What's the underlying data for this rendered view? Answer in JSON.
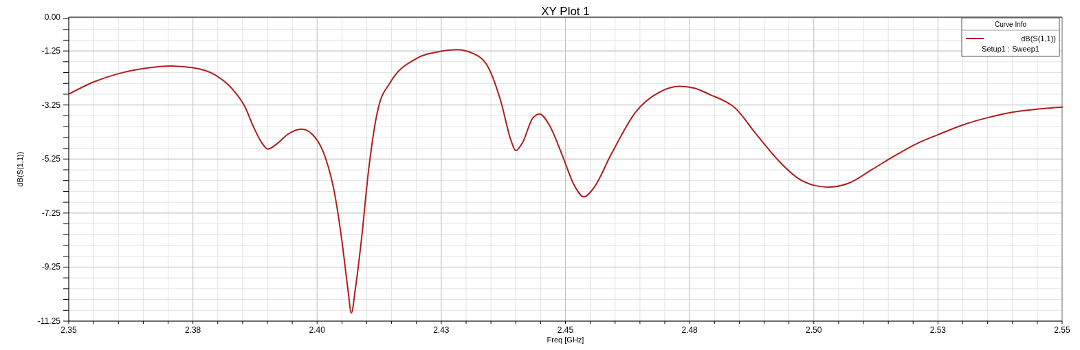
{
  "chart_data": {
    "type": "line",
    "title": "XY Plot 1",
    "xlabel": "Freq [GHz]",
    "ylabel": "dB(S(1,1))",
    "legend_title": "Curve Info",
    "legend": "top right",
    "grid": true,
    "marker": "none",
    "line_style": "solid",
    "annotations": [
      "Setup1 : Sweep1"
    ],
    "xlim": [
      2.35,
      2.55
    ],
    "xticks": [
      2.35,
      {
        "value": 2.375,
        "label": "2.38"
      },
      {
        "value": 2.4,
        "label": "2.40"
      },
      {
        "value": 2.425,
        "label": "2.43"
      },
      2.45,
      {
        "value": 2.475,
        "label": "2.48"
      },
      {
        "value": 2.5,
        "label": "2.50"
      },
      {
        "value": 2.525,
        "label": "2.53"
      },
      2.55
    ],
    "ylim": [
      -11.25,
      0
    ],
    "yticks": [
      {
        "value": 0,
        "label": "0.00"
      },
      -1.25,
      -3.25,
      -5.25,
      -7.25,
      -9.25,
      -11.25
    ],
    "series": [
      {
        "name": "dB(S(1,1))",
        "color": "#b01c1c",
        "x": [
          2.35,
          2.355,
          2.36,
          2.3648,
          2.3707,
          2.375,
          2.3795,
          2.383,
          2.3854,
          2.3873,
          2.3888,
          2.3901,
          2.3917,
          2.3942,
          2.3969,
          2.3996,
          2.4016,
          2.4035,
          2.405,
          2.4062,
          2.4069,
          2.4077,
          2.4089,
          2.4104,
          2.4123,
          2.4148,
          2.4197,
          2.425,
          2.4281,
          2.4315,
          2.4345,
          2.437,
          2.439,
          2.44,
          2.4414,
          2.4434,
          2.4448,
          2.4468,
          2.4493,
          2.4518,
          2.4537,
          2.4557,
          2.4592,
          2.4641,
          2.4691,
          2.473,
          2.476,
          2.4794,
          2.4823,
          2.4839,
          2.4885,
          2.4932,
          2.4969,
          2.5,
          2.5029,
          2.5071,
          2.5118,
          2.5164,
          2.5211,
          2.525,
          2.5303,
          2.535,
          2.5396,
          2.5443,
          2.55
        ],
        "values": [
          -2.85,
          -2.4,
          -2.09,
          -1.91,
          -1.81,
          -1.87,
          -2.14,
          -2.67,
          -3.29,
          -4.1,
          -4.63,
          -4.88,
          -4.72,
          -4.32,
          -4.14,
          -4.45,
          -5.16,
          -6.5,
          -8.28,
          -10.06,
          -10.95,
          -10.06,
          -8.28,
          -5.61,
          -3.38,
          -2.4,
          -1.56,
          -1.26,
          -1.2,
          -1.35,
          -1.87,
          -3.12,
          -4.54,
          -4.94,
          -4.63,
          -3.74,
          -3.58,
          -4.01,
          -5.08,
          -6.23,
          -6.65,
          -6.32,
          -5.08,
          -3.52,
          -2.76,
          -2.56,
          -2.63,
          -2.89,
          -3.13,
          -3.32,
          -4.35,
          -5.37,
          -5.97,
          -6.22,
          -6.29,
          -6.14,
          -5.63,
          -5.12,
          -4.65,
          -4.35,
          -3.97,
          -3.72,
          -3.53,
          -3.42,
          -3.33
        ]
      }
    ]
  }
}
